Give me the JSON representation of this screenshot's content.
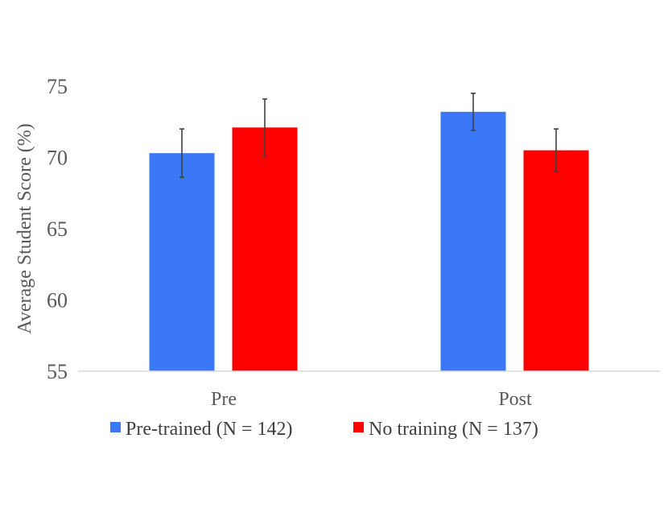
{
  "chart_data": {
    "type": "bar",
    "title": "",
    "xlabel": "",
    "ylabel": "Average Student Score (%)",
    "categories": [
      "Pre",
      "Post"
    ],
    "series": [
      {
        "name": "Pre-trained (N = 142)",
        "color": "#3B78F7",
        "values": [
          70.3,
          73.2
        ],
        "error": [
          1.7,
          1.3
        ]
      },
      {
        "name": "No training (N = 137)",
        "color": "#FF0000",
        "values": [
          72.1,
          70.5
        ],
        "error": [
          2.0,
          1.5
        ]
      }
    ],
    "ylim": [
      55,
      75
    ],
    "yticks": [
      55,
      60,
      65,
      70,
      75
    ],
    "grid": false,
    "legend_position": "bottom",
    "error_bar_color": "#404040"
  }
}
